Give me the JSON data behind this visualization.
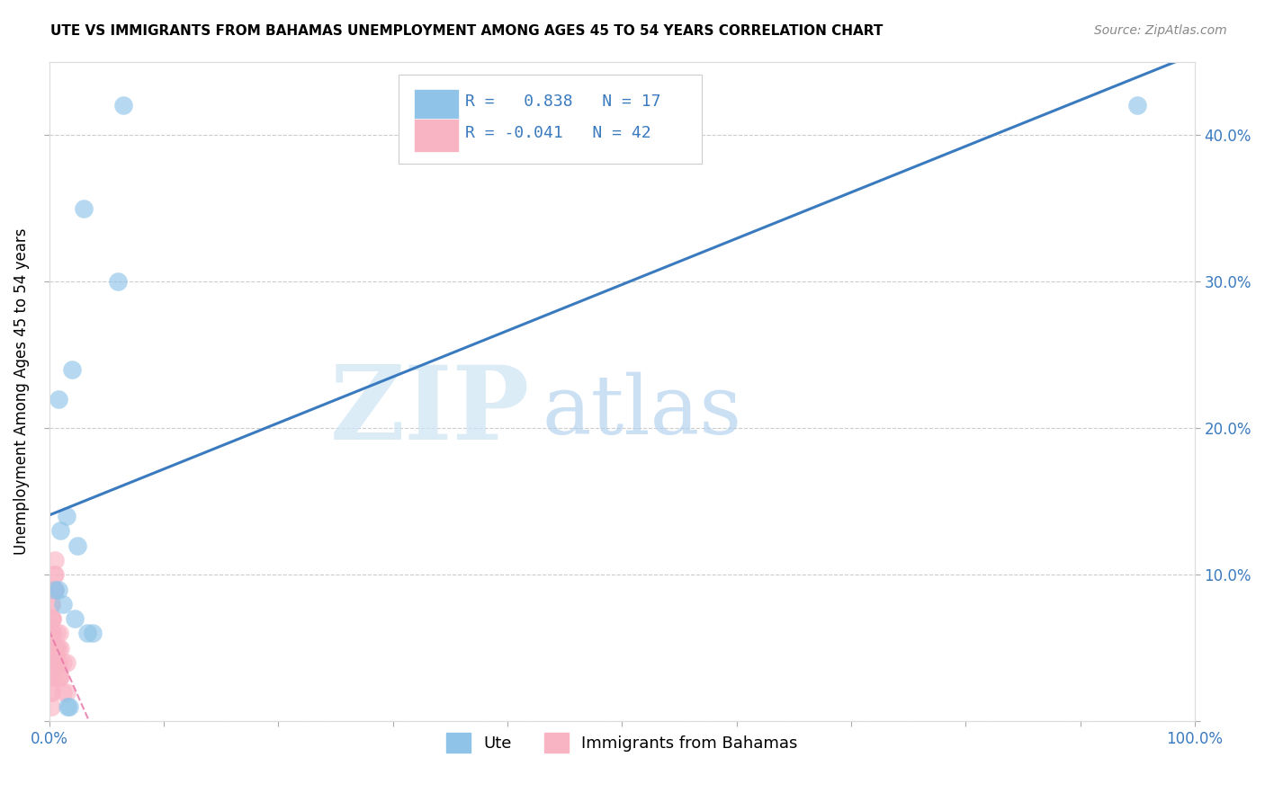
{
  "title": "UTE VS IMMIGRANTS FROM BAHAMAS UNEMPLOYMENT AMONG AGES 45 TO 54 YEARS CORRELATION CHART",
  "source": "Source: ZipAtlas.com",
  "ylabel": "Unemployment Among Ages 45 to 54 years",
  "watermark_zip": "ZIP",
  "watermark_atlas": "atlas",
  "ute_R": 0.838,
  "ute_N": 17,
  "imm_R": -0.041,
  "imm_N": 42,
  "xlim": [
    0.0,
    1.0
  ],
  "ylim": [
    0.0,
    0.45
  ],
  "xticks": [
    0.0,
    0.1,
    0.2,
    0.3,
    0.4,
    0.5,
    0.6,
    0.7,
    0.8,
    0.9,
    1.0
  ],
  "xticklabels": [
    "0.0%",
    "",
    "",
    "",
    "",
    "",
    "",
    "",
    "",
    "",
    "100.0%"
  ],
  "yticks": [
    0.0,
    0.1,
    0.2,
    0.3,
    0.4
  ],
  "yticklabels_left": [
    "",
    "",
    "",
    "",
    ""
  ],
  "yticklabels_right": [
    "",
    "10.0%",
    "20.0%",
    "30.0%",
    "40.0%"
  ],
  "ute_color": "#8fc4e8",
  "imm_color": "#f9b4c4",
  "ute_line_color": "#3a7abf",
  "imm_line_color": "#e87aaa",
  "legend_label_ute": "Ute",
  "legend_label_imm": "Immigrants from Bahamas",
  "ute_scatter_x": [
    0.005,
    0.008,
    0.01,
    0.012,
    0.015,
    0.02,
    0.022,
    0.025,
    0.03,
    0.06,
    0.065,
    0.95,
    0.038,
    0.018,
    0.016,
    0.008,
    0.033
  ],
  "ute_scatter_y": [
    0.09,
    0.09,
    0.13,
    0.08,
    0.14,
    0.24,
    0.07,
    0.12,
    0.35,
    0.3,
    0.42,
    0.42,
    0.06,
    0.01,
    0.01,
    0.22,
    0.06
  ],
  "imm_scatter_x": [
    0.002,
    0.002,
    0.002,
    0.002,
    0.002,
    0.002,
    0.002,
    0.002,
    0.002,
    0.002,
    0.002,
    0.002,
    0.002,
    0.002,
    0.002,
    0.004,
    0.004,
    0.005,
    0.005,
    0.005,
    0.005,
    0.006,
    0.006,
    0.007,
    0.007,
    0.008,
    0.008,
    0.008,
    0.009,
    0.009,
    0.01,
    0.01,
    0.012,
    0.012,
    0.015,
    0.015,
    0.003,
    0.003,
    0.003,
    0.003,
    0.004,
    0.004
  ],
  "imm_scatter_y": [
    0.04,
    0.04,
    0.05,
    0.05,
    0.06,
    0.06,
    0.07,
    0.07,
    0.08,
    0.08,
    0.02,
    0.02,
    0.03,
    0.03,
    0.01,
    0.09,
    0.1,
    0.09,
    0.1,
    0.05,
    0.11,
    0.04,
    0.05,
    0.05,
    0.06,
    0.04,
    0.05,
    0.03,
    0.06,
    0.03,
    0.05,
    0.03,
    0.04,
    0.02,
    0.04,
    0.02,
    0.06,
    0.07,
    0.06,
    0.07,
    0.05,
    0.04
  ],
  "background_color": "#ffffff",
  "grid_color": "#cccccc",
  "tick_color": "#aaaaaa",
  "axis_color": "#3a7abf",
  "title_fontsize": 11,
  "source_fontsize": 10,
  "tick_fontsize": 12,
  "ylabel_fontsize": 12
}
